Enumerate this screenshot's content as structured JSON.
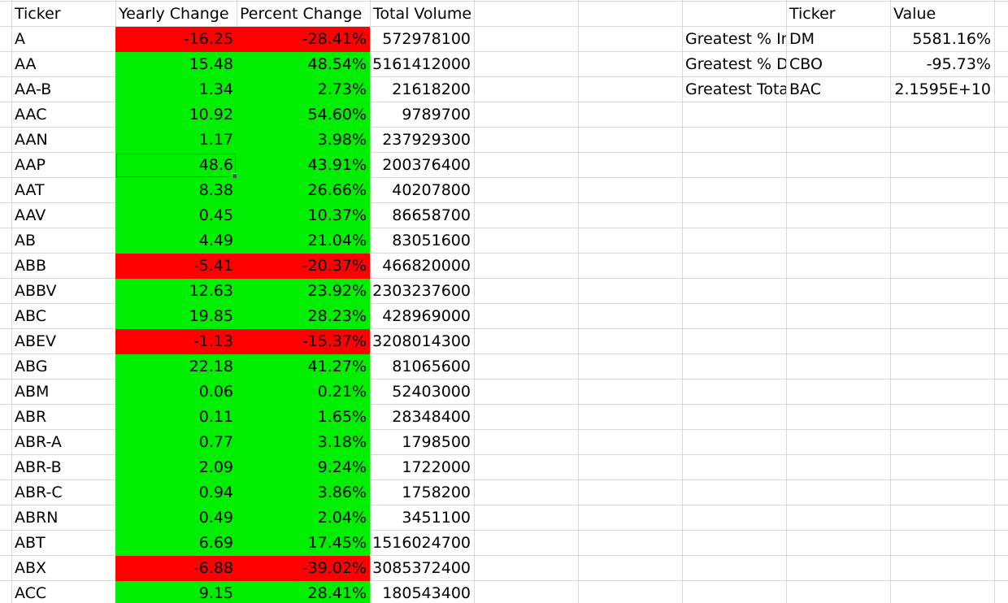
{
  "headers": {
    "ticker": "Ticker",
    "yearly_change": "Yearly Change",
    "percent_change": "Percent Change",
    "total_volume": "Total Volume"
  },
  "rows": [
    {
      "ticker": "A",
      "yearly_change": "-16.25",
      "percent_change": "-28.41%",
      "total_volume": "572978100",
      "trend": "negative"
    },
    {
      "ticker": "AA",
      "yearly_change": "15.48",
      "percent_change": "48.54%",
      "total_volume": "5161412000",
      "trend": "positive"
    },
    {
      "ticker": "AA-B",
      "yearly_change": "1.34",
      "percent_change": "2.73%",
      "total_volume": "21618200",
      "trend": "positive"
    },
    {
      "ticker": "AAC",
      "yearly_change": "10.92",
      "percent_change": "54.60%",
      "total_volume": "9789700",
      "trend": "positive"
    },
    {
      "ticker": "AAN",
      "yearly_change": "1.17",
      "percent_change": "3.98%",
      "total_volume": "237929300",
      "trend": "positive"
    },
    {
      "ticker": "AAP",
      "yearly_change": "48.6",
      "percent_change": "43.91%",
      "total_volume": "200376400",
      "trend": "positive",
      "selected": true
    },
    {
      "ticker": "AAT",
      "yearly_change": "8.38",
      "percent_change": "26.66%",
      "total_volume": "40207800",
      "trend": "positive"
    },
    {
      "ticker": "AAV",
      "yearly_change": "0.45",
      "percent_change": "10.37%",
      "total_volume": "86658700",
      "trend": "positive"
    },
    {
      "ticker": "AB",
      "yearly_change": "4.49",
      "percent_change": "21.04%",
      "total_volume": "83051600",
      "trend": "positive"
    },
    {
      "ticker": "ABB",
      "yearly_change": "-5.41",
      "percent_change": "-20.37%",
      "total_volume": "466820000",
      "trend": "negative"
    },
    {
      "ticker": "ABBV",
      "yearly_change": "12.63",
      "percent_change": "23.92%",
      "total_volume": "2303237600",
      "trend": "positive"
    },
    {
      "ticker": "ABC",
      "yearly_change": "19.85",
      "percent_change": "28.23%",
      "total_volume": "428969000",
      "trend": "positive"
    },
    {
      "ticker": "ABEV",
      "yearly_change": "-1.13",
      "percent_change": "-15.37%",
      "total_volume": "3208014300",
      "trend": "negative"
    },
    {
      "ticker": "ABG",
      "yearly_change": "22.18",
      "percent_change": "41.27%",
      "total_volume": "81065600",
      "trend": "positive"
    },
    {
      "ticker": "ABM",
      "yearly_change": "0.06",
      "percent_change": "0.21%",
      "total_volume": "52403000",
      "trend": "positive"
    },
    {
      "ticker": "ABR",
      "yearly_change": "0.11",
      "percent_change": "1.65%",
      "total_volume": "28348400",
      "trend": "positive"
    },
    {
      "ticker": "ABR-A",
      "yearly_change": "0.77",
      "percent_change": "3.18%",
      "total_volume": "1798500",
      "trend": "positive"
    },
    {
      "ticker": "ABR-B",
      "yearly_change": "2.09",
      "percent_change": "9.24%",
      "total_volume": "1722000",
      "trend": "positive"
    },
    {
      "ticker": "ABR-C",
      "yearly_change": "0.94",
      "percent_change": "3.86%",
      "total_volume": "1758200",
      "trend": "positive"
    },
    {
      "ticker": "ABRN",
      "yearly_change": "0.49",
      "percent_change": "2.04%",
      "total_volume": "3451100",
      "trend": "positive"
    },
    {
      "ticker": "ABT",
      "yearly_change": "6.69",
      "percent_change": "17.45%",
      "total_volume": "1516024700",
      "trend": "positive"
    },
    {
      "ticker": "ABX",
      "yearly_change": "-6.88",
      "percent_change": "-39.02%",
      "total_volume": "3085372400",
      "trend": "negative"
    },
    {
      "ticker": "ACC",
      "yearly_change": "9.15",
      "percent_change": "28.41%",
      "total_volume": "180543400",
      "trend": "positive"
    }
  ],
  "summary": {
    "headers": {
      "ticker": "Ticker",
      "value": "Value"
    },
    "rows": [
      {
        "label": "Greatest % Increase",
        "ticker": "DM",
        "value": "5581.16%"
      },
      {
        "label": "Greatest % Decrease",
        "ticker": "CBO",
        "value": "-95.73%"
      },
      {
        "label": "Greatest Total Volume",
        "ticker": "BAC",
        "value": "2.1595E+10"
      }
    ]
  },
  "colors": {
    "negative_fill": "#ff0000",
    "positive_fill": "#00ee00",
    "gridline": "#d9d9d9",
    "selection_border": "#1e6e3e"
  }
}
